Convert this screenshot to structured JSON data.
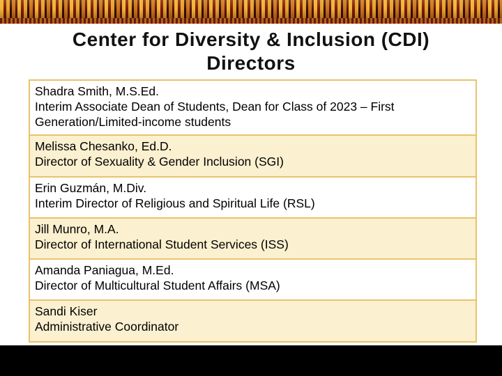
{
  "title_line1": "Center for Diversity & Inclusion (CDI)",
  "title_line2": "Directors",
  "directors": [
    {
      "name": "Shadra Smith, M.S.Ed.",
      "role": "Interim Associate Dean of Students, Dean for Class of 2023 – First Generation/Limited-income students"
    },
    {
      "name": "Melissa Chesanko, Ed.D.",
      "role": "Director of Sexuality & Gender Inclusion (SGI)"
    },
    {
      "name": "Erin Guzmán, M.Div.",
      "role": "Interim Director of Religious and Spiritual Life (RSL)"
    },
    {
      "name": "Jill Munro, M.A.",
      "role": "Director of International Student Services (ISS)"
    },
    {
      "name": "Amanda Paniagua, M.Ed.",
      "role": "Director of Multicultural Student Affairs (MSA)"
    },
    {
      "name": "Sandi Kiser",
      "role": "Administrative Coordinator"
    }
  ],
  "colors": {
    "table_border": "#e8c36a",
    "row_tan": "#fbf0cf",
    "row_light": "#ffffff"
  }
}
